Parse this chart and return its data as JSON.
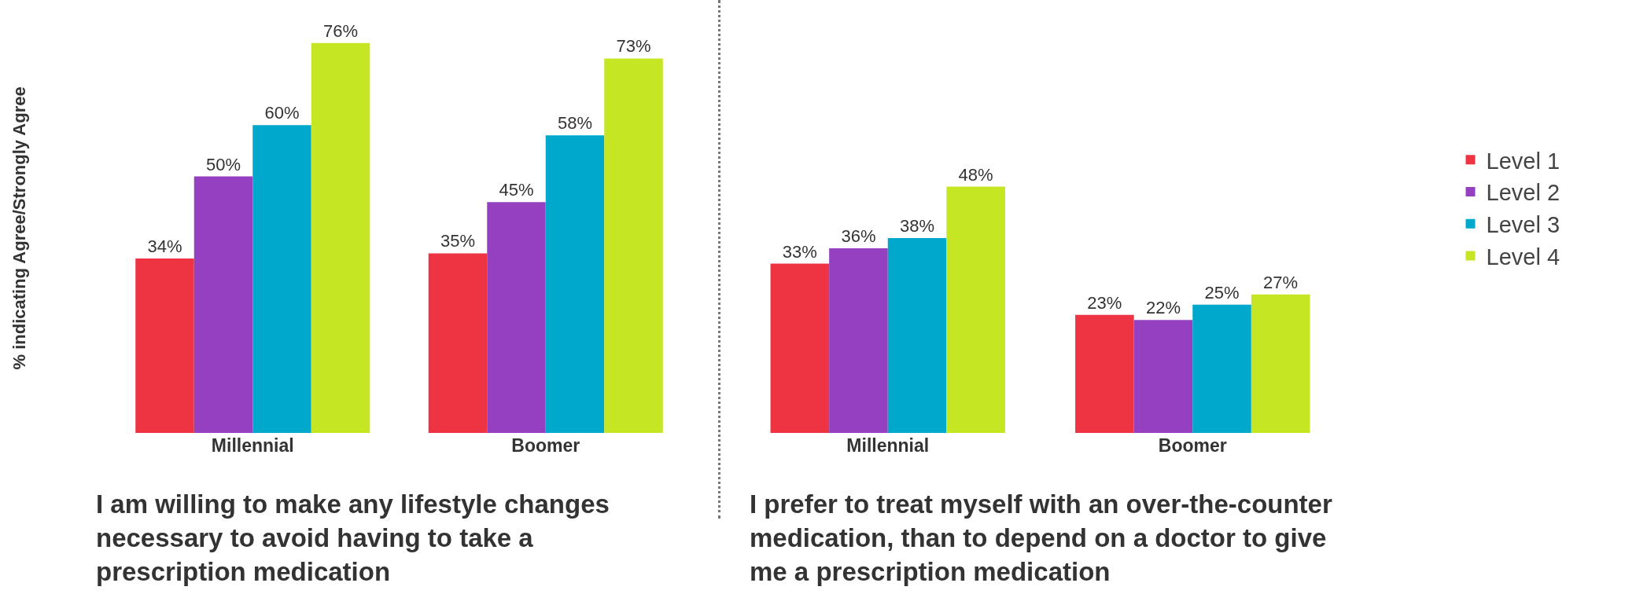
{
  "chart_data": [
    {
      "type": "bar",
      "title": "I am willing to make any lifestyle changes necessary to avoid having to take a prescription medication",
      "ylabel": "% indicating Agree/Strongly Agree",
      "categories": [
        "Millennial",
        "Boomer"
      ],
      "legend": false,
      "grid": false,
      "series": [
        {
          "color": "#ee3342",
          "values": [
            34,
            35
          ],
          "value_labels": [
            "34%",
            "35%"
          ]
        },
        {
          "color": "#9440c0",
          "values": [
            50,
            45
          ],
          "value_labels": [
            "50%",
            "45%"
          ]
        },
        {
          "color": "#00a8cc",
          "values": [
            60,
            58
          ],
          "value_labels": [
            "60%",
            "58%"
          ]
        },
        {
          "color": "#c5e623",
          "values": [
            76,
            73
          ],
          "value_labels": [
            "76%",
            "73%"
          ]
        }
      ]
    },
    {
      "type": "bar",
      "title": "I prefer to treat myself with an over-the-counter medication, than to depend on a doctor to give me a prescription medication",
      "categories": [
        "Millennial",
        "Boomer"
      ],
      "legend": "right",
      "grid": false,
      "series": [
        {
          "name": "Level 1",
          "color": "#ee3342",
          "values": [
            33,
            23
          ],
          "value_labels": [
            "33%",
            "23%"
          ]
        },
        {
          "name": "Level 2",
          "color": "#9440c0",
          "values": [
            36,
            22
          ],
          "value_labels": [
            "36%",
            "22%"
          ]
        },
        {
          "name": "Level 3",
          "color": "#00a8cc",
          "values": [
            38,
            25
          ],
          "value_labels": [
            "38%",
            "25%"
          ]
        },
        {
          "name": "Level 4",
          "color": "#c5e623",
          "values": [
            48,
            27
          ],
          "value_labels": [
            "48%",
            "27%"
          ]
        }
      ]
    }
  ]
}
